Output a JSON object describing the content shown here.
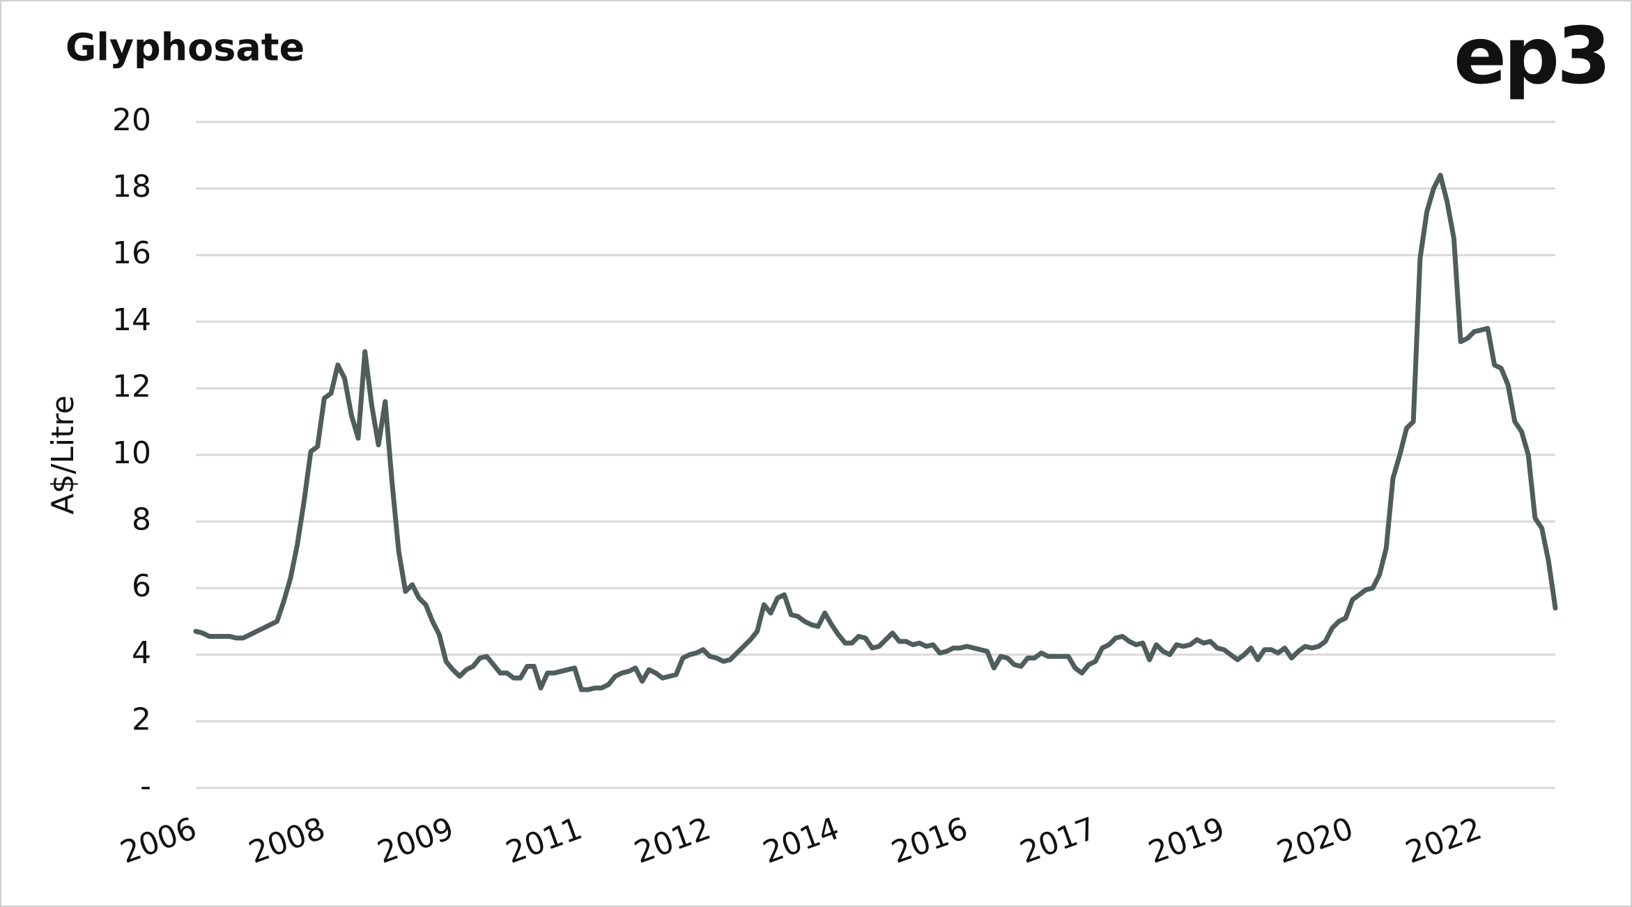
{
  "chart_data": {
    "type": "line",
    "title": "Glyphosate",
    "logo": "ep3",
    "y_label": "A$/Litre",
    "categories": [
      "2006",
      null,
      null,
      null,
      null,
      null,
      null,
      null,
      null,
      null,
      null,
      null,
      null,
      null,
      null,
      null,
      null,
      null,
      null,
      "2008",
      null,
      null,
      null,
      null,
      null,
      null,
      null,
      null,
      null,
      null,
      null,
      null,
      null,
      null,
      null,
      null,
      null,
      null,
      "2009",
      null,
      null,
      null,
      null,
      null,
      null,
      null,
      null,
      null,
      null,
      null,
      null,
      null,
      null,
      null,
      null,
      null,
      null,
      "2011",
      null,
      null,
      null,
      null,
      null,
      null,
      null,
      null,
      null,
      null,
      null,
      null,
      null,
      null,
      null,
      null,
      null,
      null,
      "2012",
      null,
      null,
      null,
      null,
      null,
      null,
      null,
      null,
      null,
      null,
      null,
      null,
      null,
      null,
      null,
      null,
      null,
      null,
      "2014",
      null,
      null,
      null,
      null,
      null,
      null,
      null,
      null,
      null,
      null,
      null,
      null,
      null,
      null,
      null,
      null,
      null,
      null,
      "2016",
      null,
      null,
      null,
      null,
      null,
      null,
      null,
      null,
      null,
      null,
      null,
      null,
      null,
      null,
      null,
      null,
      null,
      null,
      "2017",
      null,
      null,
      null,
      null,
      null,
      null,
      null,
      null,
      null,
      null,
      null,
      null,
      null,
      null,
      null,
      null,
      null,
      null,
      "2019",
      null,
      null,
      null,
      null,
      null,
      null,
      null,
      null,
      null,
      null,
      null,
      null,
      null,
      null,
      null,
      null,
      null,
      null,
      "2020",
      null,
      null,
      null,
      null,
      null,
      null,
      null,
      null,
      null,
      null,
      null,
      null,
      null,
      null,
      null,
      null,
      null,
      null,
      "2022",
      null,
      null,
      null,
      null,
      null,
      null,
      null,
      null,
      null,
      null,
      null
    ],
    "values": [
      4.7,
      4.65,
      4.55,
      4.55,
      4.55,
      4.55,
      4.5,
      4.5,
      4.6,
      4.7,
      4.8,
      4.9,
      5.0,
      5.6,
      6.3,
      7.3,
      8.6,
      10.1,
      10.25,
      11.7,
      11.85,
      12.7,
      12.3,
      11.2,
      10.5,
      13.1,
      11.5,
      10.3,
      11.6,
      9.2,
      7.1,
      5.9,
      6.1,
      5.7,
      5.5,
      5.0,
      4.6,
      3.8,
      3.55,
      3.35,
      3.55,
      3.65,
      3.9,
      3.95,
      3.7,
      3.45,
      3.45,
      3.3,
      3.3,
      3.65,
      3.65,
      3.0,
      3.45,
      3.45,
      3.5,
      3.55,
      3.6,
      2.95,
      2.95,
      3.0,
      3.0,
      3.1,
      3.35,
      3.45,
      3.5,
      3.6,
      3.2,
      3.55,
      3.45,
      3.3,
      3.35,
      3.4,
      3.9,
      4.0,
      4.05,
      4.15,
      3.95,
      3.9,
      3.8,
      3.85,
      4.05,
      4.25,
      4.45,
      4.7,
      5.5,
      5.25,
      5.7,
      5.8,
      5.2,
      5.15,
      5.0,
      4.9,
      4.85,
      5.25,
      4.9,
      4.6,
      4.35,
      4.35,
      4.55,
      4.5,
      4.2,
      4.25,
      4.45,
      4.65,
      4.4,
      4.4,
      4.3,
      4.35,
      4.25,
      4.3,
      4.05,
      4.1,
      4.2,
      4.2,
      4.25,
      4.2,
      4.15,
      4.1,
      3.6,
      3.95,
      3.9,
      3.7,
      3.65,
      3.9,
      3.9,
      4.05,
      3.95,
      3.95,
      3.95,
      3.95,
      3.6,
      3.45,
      3.7,
      3.8,
      4.2,
      4.3,
      4.5,
      4.55,
      4.4,
      4.3,
      4.35,
      3.85,
      4.3,
      4.1,
      4.0,
      4.3,
      4.25,
      4.3,
      4.45,
      4.35,
      4.4,
      4.2,
      4.15,
      4.0,
      3.85,
      4.0,
      4.2,
      3.85,
      4.15,
      4.15,
      4.05,
      4.2,
      3.9,
      4.1,
      4.25,
      4.2,
      4.25,
      4.4,
      4.8,
      5.0,
      5.1,
      5.65,
      5.8,
      5.95,
      6.0,
      6.4,
      7.2,
      9.3,
      10.0,
      10.8,
      11.0,
      15.9,
      17.3,
      18.0,
      18.4,
      17.6,
      16.5,
      13.4,
      13.5,
      13.7,
      13.75,
      13.8,
      12.7,
      12.6,
      12.1,
      11.0,
      10.7,
      10.0,
      8.1,
      7.8,
      6.8,
      5.4
    ],
    "color": "#4f5d5c",
    "ylim": [
      0,
      20
    ],
    "yticks": [
      {
        "value": 0,
        "label": "-"
      },
      2,
      4,
      6,
      8,
      10,
      12,
      14,
      16,
      18,
      20
    ],
    "grid": true
  }
}
